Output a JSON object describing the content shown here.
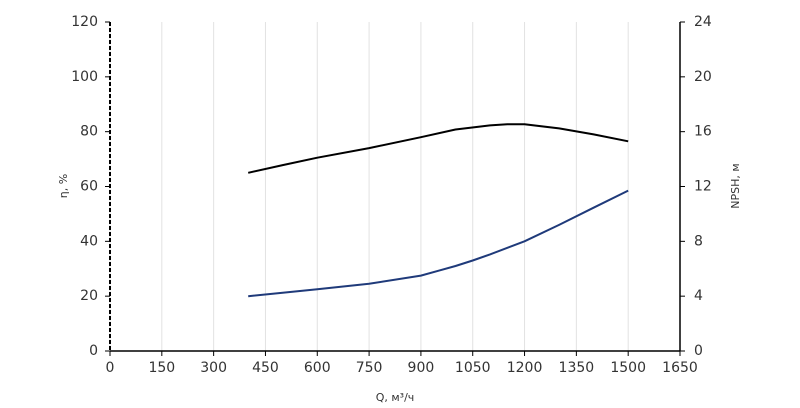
{
  "chart_data": {
    "type": "line",
    "x_label": "Q, м³/ч",
    "y_label": "η, %",
    "y2_label": "NPSH, м",
    "xlim": [
      0,
      1650
    ],
    "xticks": [
      0,
      150,
      300,
      450,
      600,
      750,
      900,
      1050,
      1200,
      1350,
      1500,
      1650
    ],
    "ylim": [
      0,
      120
    ],
    "yticks": [
      0,
      20,
      40,
      60,
      80,
      100,
      120
    ],
    "y2lim": [
      0,
      24
    ],
    "y2ticks": [
      0,
      4,
      8,
      12,
      16,
      20,
      24
    ],
    "grid": true,
    "series": [
      {
        "color": "#000000",
        "x": [
          400,
          500,
          600,
          750,
          900,
          1000,
          1100,
          1150,
          1200,
          1300,
          1400,
          1500
        ],
        "values": [
          65,
          67.8,
          70.5,
          74,
          78,
          80.8,
          82.3,
          82.7,
          82.7,
          81.2,
          79,
          76.5
        ]
      },
      {
        "color": "#1f3a7a",
        "axis": "y2",
        "x": [
          400,
          500,
          600,
          750,
          900,
          950,
          1000,
          1050,
          1100,
          1200,
          1300,
          1400,
          1500
        ],
        "values": [
          4,
          4.25,
          4.5,
          4.9,
          5.5,
          5.85,
          6.2,
          6.6,
          7.05,
          8,
          9.2,
          10.45,
          11.7
        ]
      }
    ]
  }
}
